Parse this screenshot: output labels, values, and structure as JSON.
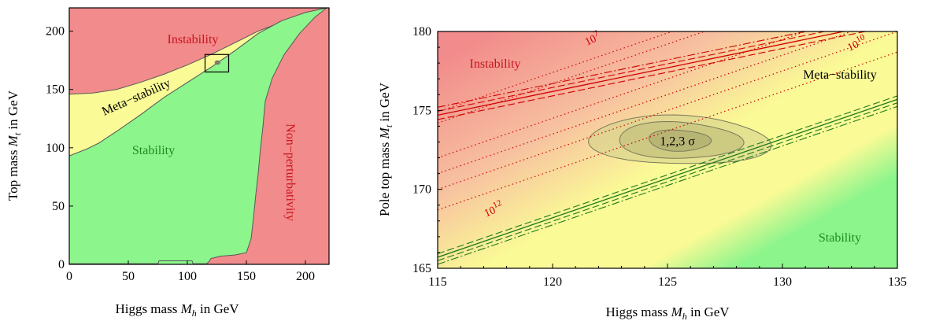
{
  "chart_data": [
    {
      "type": "area",
      "title": "",
      "xlabel": {
        "text": "Higgs mass ",
        "var": "M",
        "sub": "h",
        "unit": " in GeV"
      },
      "ylabel": {
        "text": "Top mass ",
        "var": "M",
        "sub": "t",
        "unit": " in GeV"
      },
      "xlim": [
        0,
        220
      ],
      "ylim": [
        0,
        220
      ],
      "xticks": [
        0,
        50,
        100,
        150,
        200
      ],
      "yticks": [
        0,
        50,
        100,
        150,
        200
      ],
      "grid": false,
      "regions": [
        {
          "name": "Instability",
          "label": "Instability",
          "color": "#f28b8b",
          "label_color": "#c8141e"
        },
        {
          "name": "Meta-stability",
          "label": "Meta−stability",
          "color": "#fafa96",
          "label_color": "#000000"
        },
        {
          "name": "Stability",
          "label": "Stability",
          "color": "#8cf58c",
          "label_color": "#1e8c1e"
        },
        {
          "name": "Non-perturbativity",
          "label": "Non−perturbativity",
          "color": "#f28b8b",
          "label_color": "#c8141e"
        }
      ],
      "boundaries": {
        "instability_lower": [
          [
            0,
            146
          ],
          [
            20,
            147
          ],
          [
            40,
            150
          ],
          [
            60,
            156
          ],
          [
            80,
            163
          ],
          [
            100,
            171
          ],
          [
            120,
            180
          ],
          [
            140,
            190
          ],
          [
            160,
            200
          ],
          [
            180,
            208
          ],
          [
            200,
            215
          ],
          [
            218,
            220
          ]
        ],
        "stability_upper": [
          [
            0,
            93
          ],
          [
            5,
            95
          ],
          [
            15,
            99
          ],
          [
            25,
            104
          ],
          [
            40,
            114
          ],
          [
            60,
            128
          ],
          [
            80,
            143
          ],
          [
            100,
            156
          ],
          [
            120,
            169
          ],
          [
            140,
            183
          ],
          [
            160,
            198
          ],
          [
            180,
            209
          ],
          [
            200,
            216
          ],
          [
            218,
            220
          ]
        ],
        "stability_right": [
          [
            218,
            220
          ],
          [
            208,
            212
          ],
          [
            195,
            198
          ],
          [
            182,
            180
          ],
          [
            172,
            160
          ],
          [
            166,
            140
          ],
          [
            164,
            118
          ],
          [
            162,
            100
          ],
          [
            160,
            78
          ],
          [
            158,
            60
          ],
          [
            156,
            40
          ],
          [
            154,
            22
          ],
          [
            150,
            10
          ],
          [
            140,
            8
          ],
          [
            128,
            7
          ],
          [
            120,
            5
          ],
          [
            118,
            2
          ],
          [
            116,
            0.5
          ]
        ]
      },
      "zoom_box": {
        "x": [
          115,
          135
        ],
        "y": [
          165,
          180
        ]
      },
      "best_fit": {
        "x": 125.5,
        "y": 173.1
      }
    },
    {
      "type": "area",
      "title": "",
      "xlabel": {
        "text": "Higgs mass ",
        "var": "M",
        "sub": "h",
        "unit": " in GeV"
      },
      "ylabel": {
        "text": "Pole top mass ",
        "var": "M",
        "sub": "t",
        "unit": " in GeV"
      },
      "xlim": [
        115,
        135
      ],
      "ylim": [
        165,
        180
      ],
      "xticks": [
        115,
        120,
        125,
        130,
        135
      ],
      "yticks": [
        165,
        170,
        175,
        180
      ],
      "grid": false,
      "region_labels": [
        {
          "text": "Instability",
          "x": 117.5,
          "y": 177.7,
          "color": "#c8141e"
        },
        {
          "text": "Meta−stability",
          "x": 132.5,
          "y": 177.0,
          "color": "#000000"
        },
        {
          "text": "Stability",
          "x": 132.5,
          "y": 166.7,
          "color": "#1e8c1e"
        }
      ],
      "instability_boundary": {
        "slope": 0.3,
        "lines": [
          [
            115,
            174.7
          ],
          [
            131.5,
            179.9
          ]
        ]
      },
      "stability_boundary": {
        "slope": 0.5,
        "lines": [
          [
            115,
            165.7
          ],
          [
            135,
            175.7
          ]
        ]
      },
      "dotted_lines": {
        "color": "#d00000",
        "points": [
          [
            115,
            174.9
          ],
          [
            115,
            174.2
          ],
          [
            115,
            172.0
          ],
          [
            115,
            171.0
          ],
          [
            115,
            170.0
          ],
          [
            115,
            168.7
          ]
        ],
        "slope": 0.5,
        "labels": [
          {
            "text": "10",
            "exp": "7",
            "x": 121.8,
            "y": 179.3
          },
          {
            "text": "10",
            "exp": "10",
            "x": 133.3,
            "y": 179.0
          },
          {
            "text": "10",
            "exp": "12",
            "x": 117.5,
            "y": 168.5
          }
        ]
      },
      "contours": {
        "label": "1,2,3 σ",
        "center": {
          "x": 125.5,
          "y": 173.1
        },
        "ellipses": [
          {
            "sigma": 3,
            "rx": 3.8,
            "ry": 1.6,
            "fill": "#d4d28c"
          },
          {
            "sigma": 2,
            "rx": 2.6,
            "ry": 1.2,
            "fill": "#bebc7a"
          },
          {
            "sigma": 1,
            "rx": 1.3,
            "ry": 0.7,
            "fill": "#a8a66a"
          }
        ]
      }
    }
  ]
}
